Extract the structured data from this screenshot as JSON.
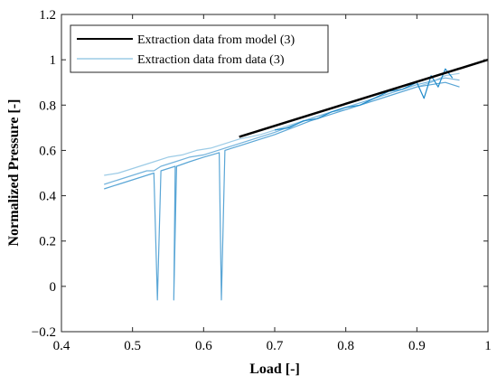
{
  "chart_data": {
    "type": "line",
    "title": "",
    "xlabel": "Load [-]",
    "ylabel": "Normalized Pressure [-]",
    "xlim": [
      0.4,
      1.0
    ],
    "ylim": [
      -0.2,
      1.2
    ],
    "xticks": [
      0.4,
      0.5,
      0.6,
      0.7,
      0.8,
      0.9,
      1
    ],
    "yticks": [
      -0.2,
      0,
      0.2,
      0.4,
      0.6,
      0.8,
      1,
      1.2
    ],
    "grid": false,
    "legend": "top-left",
    "series": [
      {
        "name": "Extraction data from model (3)",
        "color": "#000000",
        "x": [
          0.65,
          1.0
        ],
        "y": [
          0.66,
          1.0
        ]
      },
      {
        "name": "Extraction data from data (3)",
        "color": "#9ccbe6",
        "x": [
          0.46,
          0.48,
          0.5,
          0.52,
          0.53,
          0.55,
          0.57,
          0.59,
          0.61,
          0.63,
          0.65,
          0.68,
          0.7,
          0.72,
          0.75,
          0.78,
          0.8,
          0.82,
          0.85,
          0.88,
          0.9,
          0.92,
          0.94,
          0.96
        ],
        "y": [
          0.49,
          0.5,
          0.52,
          0.54,
          0.55,
          0.57,
          0.58,
          0.6,
          0.61,
          0.63,
          0.65,
          0.67,
          0.69,
          0.71,
          0.74,
          0.77,
          0.78,
          0.8,
          0.83,
          0.86,
          0.88,
          0.9,
          0.93,
          0.94
        ]
      },
      {
        "name": "",
        "color": "#74b3dc",
        "x": [
          0.46,
          0.48,
          0.5,
          0.52,
          0.53,
          0.54,
          0.56,
          0.58,
          0.6,
          0.62,
          0.64,
          0.66,
          0.7,
          0.75,
          0.8,
          0.85,
          0.9,
          0.94,
          0.96
        ],
        "y": [
          0.45,
          0.47,
          0.49,
          0.51,
          0.51,
          0.53,
          0.55,
          0.57,
          0.58,
          0.6,
          0.62,
          0.64,
          0.68,
          0.74,
          0.79,
          0.84,
          0.89,
          0.92,
          0.91
        ]
      },
      {
        "name": "",
        "color": "#5aa6d6",
        "x": [
          0.46,
          0.48,
          0.5,
          0.52,
          0.53,
          0.535,
          0.54,
          0.56,
          0.558,
          0.562,
          0.58,
          0.6,
          0.622,
          0.625,
          0.63,
          0.65,
          0.7,
          0.75,
          0.8,
          0.85,
          0.9,
          0.94,
          0.96
        ],
        "y": [
          0.43,
          0.45,
          0.47,
          0.49,
          0.5,
          -0.06,
          0.51,
          0.53,
          -0.06,
          0.53,
          0.55,
          0.57,
          0.59,
          -0.06,
          0.6,
          0.62,
          0.67,
          0.73,
          0.78,
          0.83,
          0.88,
          0.9,
          0.88
        ]
      },
      {
        "name": "",
        "color": "#1f8ac9",
        "x": [
          0.7,
          0.72,
          0.74,
          0.76,
          0.78,
          0.8,
          0.82,
          0.84,
          0.86,
          0.88,
          0.9,
          0.91,
          0.92,
          0.93,
          0.94,
          0.95
        ],
        "y": [
          0.69,
          0.7,
          0.73,
          0.74,
          0.77,
          0.79,
          0.8,
          0.83,
          0.86,
          0.87,
          0.9,
          0.83,
          0.93,
          0.88,
          0.96,
          0.92
        ]
      }
    ]
  }
}
